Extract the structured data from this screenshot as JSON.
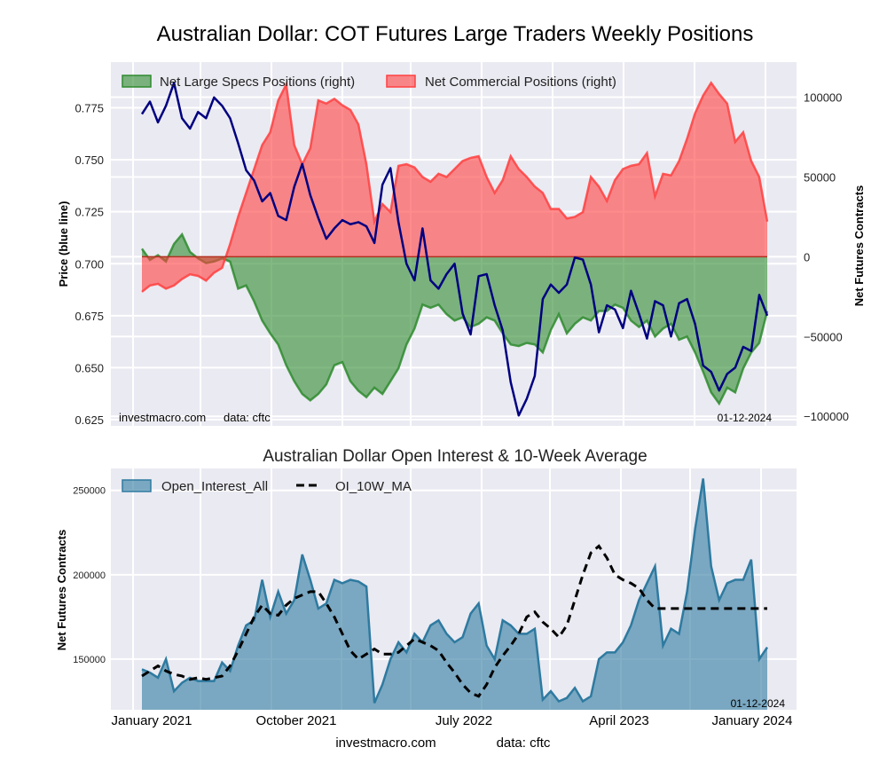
{
  "chart_data": [
    {
      "type": "area",
      "title": "Australian Dollar: COT Futures Large Traders Weekly Positions",
      "ylabel_left": "Price (blue line)",
      "ylabel_right": "Net Futures Contracts",
      "ylim_left": [
        0.622,
        0.797
      ],
      "ylim_right": [
        -106000,
        122000
      ],
      "yticks_left": [
        "0.625",
        "0.650",
        "0.675",
        "0.700",
        "0.725",
        "0.750",
        "0.775"
      ],
      "yticks_left_values": [
        0.625,
        0.65,
        0.675,
        0.7,
        0.725,
        0.75,
        0.775
      ],
      "yticks_right": [
        "−100000",
        "−50000",
        "0",
        "50000",
        "100000"
      ],
      "yticks_right_values": [
        -100000,
        -50000,
        0,
        50000,
        100000
      ],
      "grid": true,
      "legend_position": "top-left",
      "annotations": {
        "source": "investmacro.com",
        "data": "data: cftc",
        "date": "01-12-2024"
      },
      "x_weeks": [
        0,
        2,
        4,
        6,
        8,
        10,
        12,
        14,
        16,
        18,
        20,
        22,
        24,
        26,
        28,
        30,
        32,
        34,
        36,
        38,
        40,
        42,
        44,
        46,
        48,
        50,
        52,
        54,
        56,
        58,
        60,
        62,
        64,
        66,
        68,
        70,
        72,
        74,
        76,
        78,
        80,
        82,
        84,
        86,
        88,
        90,
        92,
        94,
        96,
        98,
        100,
        102,
        104,
        106,
        108,
        110,
        112,
        114,
        116,
        118,
        120,
        122,
        124,
        126,
        128,
        130,
        132,
        134,
        136,
        138,
        140,
        142,
        144,
        146,
        148,
        150,
        152,
        154,
        156
      ],
      "series": [
        {
          "name": "Net Large Specs Positions (right)",
          "color": "#2e8b2e",
          "values": [
            5000,
            -2000,
            1000,
            -3000,
            8000,
            14000,
            3000,
            -1000,
            -4000,
            -3000,
            -1000,
            -3000,
            -20000,
            -18000,
            -28000,
            -40000,
            -48000,
            -55000,
            -68000,
            -78000,
            -86000,
            -90000,
            -86000,
            -80000,
            -68000,
            -66000,
            -78000,
            -84000,
            -88000,
            -82000,
            -86000,
            -78000,
            -70000,
            -55000,
            -45000,
            -30000,
            -32000,
            -30000,
            -36000,
            -40000,
            -38000,
            -44000,
            -42000,
            -38000,
            -40000,
            -48000,
            -55000,
            -56000,
            -54000,
            -55000,
            -60000,
            -46000,
            -36000,
            -48000,
            -42000,
            -38000,
            -40000,
            -34000,
            -34000,
            -30000,
            -32000,
            -40000,
            -44000,
            -40000,
            -50000,
            -45000,
            -42000,
            -52000,
            -50000,
            -60000,
            -72000,
            -85000,
            -92000,
            -82000,
            -85000,
            -70000,
            -60000,
            -54000,
            -34000
          ]
        },
        {
          "name": "Net Commercial Positions (right)",
          "color": "#ff4040",
          "values": [
            -22000,
            -18000,
            -17000,
            -20000,
            -18000,
            -14000,
            -11000,
            -12000,
            -15000,
            -10000,
            -7000,
            8000,
            25000,
            40000,
            55000,
            70000,
            78000,
            98000,
            108000,
            70000,
            58000,
            68000,
            98000,
            96000,
            99000,
            95000,
            92000,
            83000,
            58000,
            22000,
            33000,
            28000,
            57000,
            58000,
            56000,
            50000,
            47000,
            52000,
            50000,
            55000,
            60000,
            62000,
            63000,
            50000,
            40000,
            48000,
            63000,
            55000,
            50000,
            44000,
            40000,
            30000,
            30000,
            24000,
            25000,
            28000,
            50000,
            44000,
            35000,
            48000,
            55000,
            57000,
            58000,
            65000,
            38000,
            52000,
            51000,
            60000,
            74000,
            90000,
            101000,
            109000,
            102000,
            96000,
            72000,
            78000,
            60000,
            50000,
            22000
          ]
        },
        {
          "name": "Price (blue line)",
          "color": "#000080",
          "values": [
            0.772,
            0.778,
            0.768,
            0.776,
            0.787,
            0.77,
            0.765,
            0.773,
            0.77,
            0.78,
            0.776,
            0.77,
            0.758,
            0.745,
            0.74,
            0.73,
            0.734,
            0.723,
            0.721,
            0.737,
            0.748,
            0.733,
            0.722,
            0.712,
            0.717,
            0.721,
            0.719,
            0.72,
            0.718,
            0.71,
            0.738,
            0.746,
            0.72,
            0.7,
            0.692,
            0.717,
            0.692,
            0.688,
            0.695,
            0.7,
            0.676,
            0.666,
            0.694,
            0.695,
            0.68,
            0.668,
            0.643,
            0.627,
            0.635,
            0.646,
            0.683,
            0.69,
            0.686,
            0.69,
            0.703,
            0.702,
            0.69,
            0.667,
            0.68,
            0.678,
            0.669,
            0.687,
            0.676,
            0.664,
            0.682,
            0.68,
            0.665,
            0.681,
            0.683,
            0.671,
            0.651,
            0.648,
            0.639,
            0.647,
            0.65,
            0.66,
            0.658,
            0.685,
            0.675
          ]
        }
      ]
    },
    {
      "type": "area",
      "title": "Australian Dollar Open Interest & 10-Week Average",
      "ylabel": "Net Futures Contracts",
      "ylim": [
        120000,
        263000
      ],
      "yticks": [
        "150000",
        "200000",
        "250000"
      ],
      "yticks_values": [
        150000,
        200000,
        250000
      ],
      "grid": true,
      "legend_position": "top-left",
      "xticks": [
        "January 2021",
        "October 2021",
        "July 2022",
        "April 2023",
        "January 2024"
      ],
      "annotations": {
        "date": "01-12-2024"
      },
      "x_weeks": [
        0,
        2,
        4,
        6,
        8,
        10,
        12,
        14,
        16,
        18,
        20,
        22,
        24,
        26,
        28,
        30,
        32,
        34,
        36,
        38,
        40,
        42,
        44,
        46,
        48,
        50,
        52,
        54,
        56,
        58,
        60,
        62,
        64,
        66,
        68,
        70,
        72,
        74,
        76,
        78,
        80,
        82,
        84,
        86,
        88,
        90,
        92,
        94,
        96,
        98,
        100,
        102,
        104,
        106,
        108,
        110,
        112,
        114,
        116,
        118,
        120,
        122,
        124,
        126,
        128,
        130,
        132,
        134,
        136,
        138,
        140,
        142,
        144,
        146,
        148,
        150,
        152,
        154,
        156
      ],
      "series": [
        {
          "name": "Open_Interest_All",
          "color": "#2e7aa0",
          "values": [
            144000,
            142000,
            139000,
            150000,
            131000,
            136000,
            139000,
            137000,
            137000,
            137000,
            148000,
            143000,
            158000,
            170000,
            173000,
            197000,
            175000,
            190000,
            177000,
            185000,
            212000,
            197000,
            180000,
            183000,
            197000,
            195000,
            197000,
            196000,
            193000,
            124000,
            135000,
            150000,
            160000,
            154000,
            165000,
            160000,
            170000,
            173000,
            165000,
            160000,
            163000,
            177000,
            183000,
            158000,
            150000,
            173000,
            170000,
            165000,
            165000,
            168000,
            126000,
            131000,
            125000,
            127000,
            133000,
            125000,
            128000,
            150000,
            154000,
            154000,
            160000,
            170000,
            185000,
            195000,
            205000,
            158000,
            168000,
            165000,
            190000,
            227000,
            257000,
            205000,
            185000,
            195000,
            197000,
            197000,
            209000,
            150000,
            157000
          ],
          "fill_alpha": 0.6
        },
        {
          "name": "OI_10W_MA",
          "color": "#000000",
          "dashed": true,
          "values": [
            140000,
            143000,
            146000,
            143000,
            141000,
            140000,
            138000,
            139000,
            138000,
            139000,
            140000,
            146000,
            155000,
            165000,
            175000,
            182000,
            177000,
            176000,
            182000,
            186000,
            188000,
            190000,
            190000,
            183000,
            175000,
            165000,
            155000,
            150000,
            153000,
            156000,
            153000,
            153000,
            154000,
            158000,
            162000,
            160000,
            158000,
            155000,
            148000,
            142000,
            135000,
            130000,
            128000,
            135000,
            145000,
            152000,
            158000,
            165000,
            175000,
            178000,
            172000,
            168000,
            163000,
            170000,
            185000,
            200000,
            213000,
            217000,
            210000,
            200000,
            197000,
            195000,
            192000,
            185000,
            180000,
            180000,
            180000,
            180000,
            180000,
            180000,
            180000,
            180000,
            180000,
            180000,
            180000,
            180000,
            180000,
            180000,
            180000
          ]
        }
      ]
    },
    {
      "type": "text",
      "footer": {
        "source": "investmacro.com",
        "data": "data: cftc"
      }
    }
  ]
}
